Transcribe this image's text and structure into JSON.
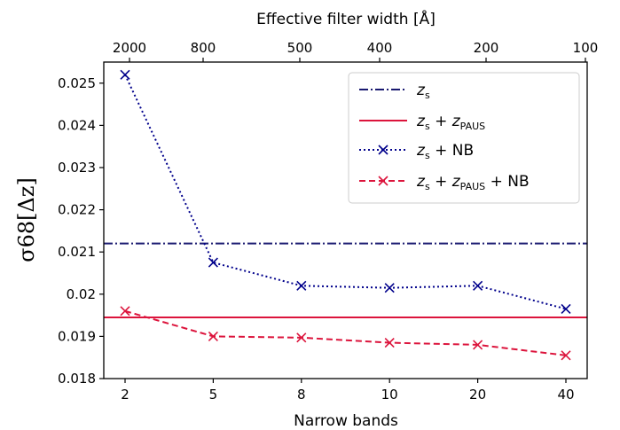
{
  "chart_data": {
    "type": "line",
    "x_categories": [
      "2",
      "5",
      "8",
      "10",
      "20",
      "40"
    ],
    "top_axis": {
      "label": "Effective filter width [Å]",
      "ticks": [
        "2000",
        "800",
        "500",
        "400",
        "200",
        "100"
      ]
    },
    "xlabel": "Narrow bands",
    "ylabel": "σ68[Δz]",
    "ylim": [
      0.018,
      0.0255
    ],
    "yticks": [
      0.018,
      0.019,
      0.02,
      0.021,
      0.022,
      0.023,
      0.024,
      0.025
    ],
    "ytick_labels": [
      "0.018",
      "0.019",
      "0.02",
      "0.021",
      "0.022",
      "0.023",
      "0.024",
      "0.025"
    ],
    "reference_lines": [
      {
        "name": "z_s",
        "value": 0.0212,
        "color": "#191970",
        "style": "dashdot"
      },
      {
        "name": "z_s + z_PAUS",
        "value": 0.01945,
        "color": "#dc143c",
        "style": "solid"
      }
    ],
    "series": [
      {
        "name": "z_s + NB",
        "color": "#00008b",
        "style": "dotted",
        "marker": "x",
        "values": [
          0.0252,
          0.02075,
          0.0202,
          0.02015,
          0.0202,
          0.01965
        ]
      },
      {
        "name": "z_s + z_PAUS + NB",
        "color": "#dc143c",
        "style": "dashed",
        "marker": "x",
        "values": [
          0.0196,
          0.019,
          0.01897,
          0.01885,
          0.0188,
          0.01855
        ]
      }
    ],
    "legend_position": "top-right",
    "grid": false
  }
}
